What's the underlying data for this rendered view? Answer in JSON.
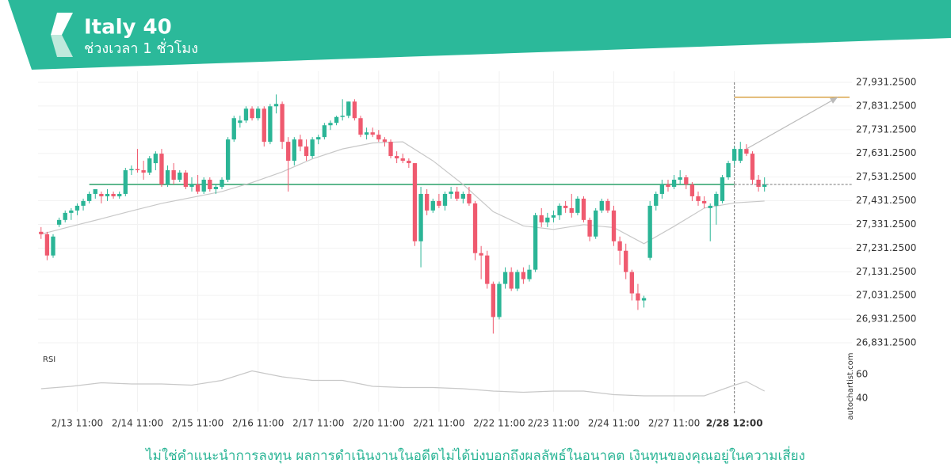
{
  "header": {
    "title": "Italy 40",
    "subtitle": "ช่วงเวลา 1 ชั่วโมง"
  },
  "chart_data": {
    "type": "candlestick",
    "candles": [
      [
        27300,
        27320,
        27270,
        27290
      ],
      [
        27290,
        27300,
        27180,
        27200
      ],
      [
        27200,
        27290,
        27190,
        27280
      ],
      [
        27330,
        27360,
        27320,
        27350
      ],
      [
        27350,
        27390,
        27340,
        27380
      ],
      [
        27380,
        27400,
        27350,
        27390
      ],
      [
        27390,
        27420,
        27370,
        27410
      ],
      [
        27410,
        27440,
        27390,
        27430
      ],
      [
        27430,
        27470,
        27420,
        27460
      ],
      [
        27460,
        27480,
        27440,
        27480
      ],
      [
        27460,
        27470,
        27420,
        27450
      ],
      [
        27450,
        27480,
        27430,
        27460
      ],
      [
        27460,
        27470,
        27440,
        27450
      ],
      [
        27450,
        27470,
        27440,
        27460
      ],
      [
        27460,
        27570,
        27450,
        27560
      ],
      [
        27560,
        27580,
        27540,
        27565
      ],
      [
        27565,
        27650,
        27550,
        27560
      ],
      [
        27560,
        27600,
        27520,
        27550
      ],
      [
        27550,
        27620,
        27540,
        27610
      ],
      [
        27590,
        27640,
        27560,
        27630
      ],
      [
        27630,
        27650,
        27490,
        27500
      ],
      [
        27500,
        27580,
        27490,
        27560
      ],
      [
        27560,
        27590,
        27500,
        27520
      ],
      [
        27520,
        27560,
        27510,
        27550
      ],
      [
        27550,
        27560,
        27480,
        27490
      ],
      [
        27490,
        27530,
        27470,
        27500
      ],
      [
        27500,
        27540,
        27460,
        27470
      ],
      [
        27470,
        27530,
        27460,
        27520
      ],
      [
        27520,
        27530,
        27470,
        27480
      ],
      [
        27480,
        27500,
        27460,
        27490
      ],
      [
        27490,
        27530,
        27480,
        27520
      ],
      [
        27520,
        27700,
        27510,
        27690
      ],
      [
        27690,
        27790,
        27680,
        27780
      ],
      [
        27760,
        27790,
        27740,
        27770
      ],
      [
        27770,
        27830,
        27760,
        27820
      ],
      [
        27820,
        27830,
        27770,
        27780
      ],
      [
        27780,
        27830,
        27770,
        27820
      ],
      [
        27820,
        27830,
        27660,
        27680
      ],
      [
        27680,
        27840,
        27670,
        27830
      ],
      [
        27830,
        27880,
        27800,
        27840
      ],
      [
        27840,
        27850,
        27650,
        27680
      ],
      [
        27680,
        27700,
        27470,
        27600
      ],
      [
        27600,
        27700,
        27580,
        27690
      ],
      [
        27690,
        27710,
        27640,
        27660
      ],
      [
        27660,
        27690,
        27600,
        27620
      ],
      [
        27620,
        27700,
        27610,
        27690
      ],
      [
        27690,
        27710,
        27670,
        27700
      ],
      [
        27700,
        27760,
        27690,
        27750
      ],
      [
        27750,
        27770,
        27730,
        27760
      ],
      [
        27760,
        27790,
        27750,
        27785
      ],
      [
        27785,
        27860,
        27770,
        27790
      ],
      [
        27790,
        27850,
        27780,
        27850
      ],
      [
        27850,
        27860,
        27770,
        27780
      ],
      [
        27780,
        27790,
        27700,
        27710
      ],
      [
        27710,
        27740,
        27690,
        27720
      ],
      [
        27720,
        27740,
        27700,
        27710
      ],
      [
        27710,
        27730,
        27680,
        27690
      ],
      [
        27690,
        27700,
        27660,
        27680
      ],
      [
        27680,
        27690,
        27610,
        27620
      ],
      [
        27620,
        27640,
        27590,
        27610
      ],
      [
        27610,
        27630,
        27590,
        27600
      ],
      [
        27600,
        27610,
        27570,
        27590
      ],
      [
        27590,
        27590,
        27240,
        27260
      ],
      [
        27260,
        27490,
        27150,
        27460
      ],
      [
        27460,
        27480,
        27370,
        27390
      ],
      [
        27390,
        27440,
        27380,
        27430
      ],
      [
        27430,
        27460,
        27400,
        27410
      ],
      [
        27410,
        27470,
        27390,
        27460
      ],
      [
        27460,
        27490,
        27440,
        27470
      ],
      [
        27470,
        27490,
        27430,
        27440
      ],
      [
        27440,
        27470,
        27420,
        27460
      ],
      [
        27460,
        27490,
        27410,
        27420
      ],
      [
        27420,
        27430,
        27180,
        27210
      ],
      [
        27210,
        27240,
        27100,
        27200
      ],
      [
        27200,
        27220,
        27060,
        27080
      ],
      [
        27080,
        27090,
        26870,
        26940
      ],
      [
        26940,
        27090,
        26930,
        27080
      ],
      [
        27080,
        27150,
        27060,
        27130
      ],
      [
        27130,
        27150,
        27050,
        27060
      ],
      [
        27060,
        27140,
        27050,
        27130
      ],
      [
        27130,
        27150,
        27080,
        27100
      ],
      [
        27100,
        27160,
        27090,
        27140
      ],
      [
        27140,
        27380,
        27130,
        27370
      ],
      [
        27370,
        27400,
        27320,
        27340
      ],
      [
        27340,
        27380,
        27320,
        27360
      ],
      [
        27360,
        27390,
        27340,
        27370
      ],
      [
        27370,
        27420,
        27350,
        27410
      ],
      [
        27410,
        27430,
        27380,
        27400
      ],
      [
        27400,
        27460,
        27360,
        27380
      ],
      [
        27380,
        27450,
        27370,
        27440
      ],
      [
        27440,
        27450,
        27340,
        27350
      ],
      [
        27350,
        27360,
        27260,
        27280
      ],
      [
        27280,
        27400,
        27270,
        27390
      ],
      [
        27390,
        27440,
        27380,
        27430
      ],
      [
        27430,
        27440,
        27380,
        27390
      ],
      [
        27390,
        27410,
        27240,
        27260
      ],
      [
        27260,
        27280,
        27160,
        27220
      ],
      [
        27220,
        27250,
        27100,
        27130
      ],
      [
        27130,
        27140,
        27010,
        27040
      ],
      [
        27040,
        27080,
        26970,
        27010
      ],
      [
        27010,
        27030,
        26980,
        27020
      ],
      [
        27190,
        27430,
        27180,
        27410
      ],
      [
        27410,
        27470,
        27390,
        27460
      ],
      [
        27460,
        27520,
        27440,
        27500
      ],
      [
        27500,
        27520,
        27470,
        27490
      ],
      [
        27490,
        27540,
        27480,
        27520
      ],
      [
        27520,
        27560,
        27500,
        27530
      ],
      [
        27530,
        27540,
        27480,
        27500
      ],
      [
        27500,
        27510,
        27430,
        27450
      ],
      [
        27450,
        27470,
        27410,
        27430
      ],
      [
        27430,
        27450,
        27400,
        27420
      ],
      [
        27400,
        27420,
        27260,
        27410
      ],
      [
        27410,
        27470,
        27330,
        27460
      ],
      [
        27430,
        27540,
        27420,
        27530
      ],
      [
        27530,
        27600,
        27520,
        27590
      ],
      [
        27600,
        27660,
        27580,
        27650
      ],
      [
        27600,
        27680,
        27590,
        27650
      ],
      [
        27650,
        27670,
        27620,
        27630
      ],
      [
        27630,
        27640,
        27500,
        27520
      ],
      [
        27520,
        27540,
        27470,
        27490
      ],
      [
        27490,
        27530,
        27470,
        27500
      ]
    ],
    "up_color": "#2bb596",
    "down_color": "#ef5a6f",
    "ma": {
      "color": "#c8c8c8",
      "x": [
        0,
        5,
        10,
        15,
        20,
        25,
        30,
        35,
        40,
        45,
        50,
        55,
        60,
        65,
        70,
        75,
        80,
        85,
        90,
        95,
        100,
        105,
        110,
        115,
        120
      ],
      "values": [
        27290,
        27323,
        27355,
        27388,
        27420,
        27445,
        27470,
        27508,
        27553,
        27608,
        27650,
        27675,
        27680,
        27600,
        27500,
        27385,
        27325,
        27310,
        27330,
        27318,
        27250,
        27323,
        27400,
        27422,
        27430
      ]
    },
    "support": {
      "value": 27500,
      "x": [
        8,
        115
      ],
      "color": "#5fb88e"
    },
    "target": {
      "value": 27868,
      "x": 115,
      "color": "#d9a44a"
    },
    "xlim": [
      -0.5,
      134.5
    ],
    "xticks": [
      {
        "value": 6,
        "label": "2/13 11:00"
      },
      {
        "value": 16,
        "label": "2/14 11:00"
      },
      {
        "value": 26,
        "label": "2/15 11:00"
      },
      {
        "value": 36,
        "label": "2/16 11:00"
      },
      {
        "value": 46,
        "label": "2/17 11:00"
      },
      {
        "value": 56,
        "label": "2/20 11:00"
      },
      {
        "value": 66,
        "label": "2/21 11:00"
      },
      {
        "value": 76,
        "label": "2/22 11:00"
      },
      {
        "value": 85,
        "label": "2/23 11:00"
      },
      {
        "value": 95,
        "label": "2/24 11:00"
      },
      {
        "value": 105,
        "label": "2/27 11:00"
      },
      {
        "value": 115,
        "label": "2/28 12:00"
      }
    ],
    "ylim": [
      26831.25,
      27931.25
    ],
    "yticks": [
      {
        "value": 27931.25,
        "label": "27,931.2500"
      },
      {
        "value": 27831.25,
        "label": "27,831.2500"
      },
      {
        "value": 27731.25,
        "label": "27,731.2500"
      },
      {
        "value": 27631.25,
        "label": "27,631.2500"
      },
      {
        "value": 27531.25,
        "label": "27,531.2500"
      },
      {
        "value": 27431.25,
        "label": "27,431.2500"
      },
      {
        "value": 27331.25,
        "label": "27,331.2500"
      },
      {
        "value": 27231.25,
        "label": "27,231.2500"
      },
      {
        "value": 27131.25,
        "label": "27,131.2500"
      },
      {
        "value": 27031.25,
        "label": "27,031.2500"
      },
      {
        "value": 26931.25,
        "label": "26,931.2500"
      },
      {
        "value": 26831.25,
        "label": "26,831.2500"
      }
    ],
    "grid": true,
    "rsi": {
      "label": "RSI",
      "color": "#c8c8c8",
      "ylim": [
        30,
        70
      ],
      "yticks": [
        60,
        40
      ],
      "x": [
        0,
        5,
        10,
        15,
        20,
        25,
        30,
        35,
        40,
        45,
        50,
        55,
        60,
        65,
        70,
        75,
        80,
        85,
        90,
        95,
        100,
        105,
        110,
        115,
        117,
        120
      ],
      "values": [
        48,
        50,
        53,
        52,
        52,
        51,
        55,
        63,
        58,
        55,
        55,
        50,
        49,
        49,
        48,
        46,
        45,
        46,
        46,
        43,
        42,
        42,
        42,
        51,
        54,
        46
      ]
    }
  },
  "watermark": "autochartist.com",
  "footer": "ไม่ใช่คำแนะนำการลงทุน ผลการดำเนินงานในอดีตไม่ได้บ่งบอกถึงผลลัพธ์ในอนาคต เงินทุนของคุณอยู่ในความเสี่ยง"
}
